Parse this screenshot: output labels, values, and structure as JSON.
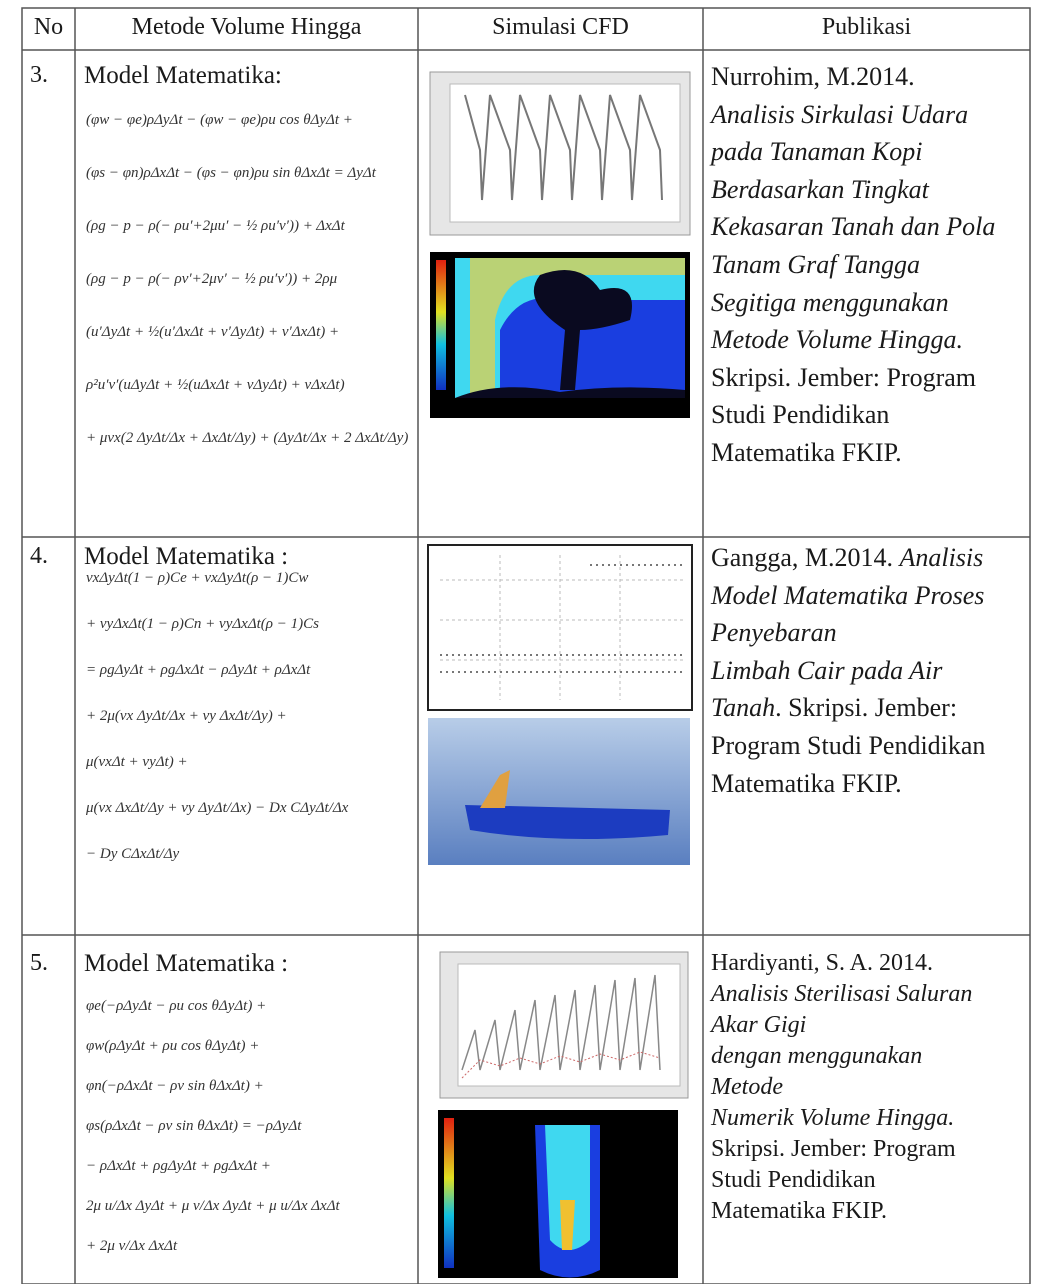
{
  "table": {
    "header": [
      "No",
      "Metode Volume Hingga",
      "Simulasi CFD",
      "Publikasi"
    ],
    "rows": [
      {
        "no": "3.",
        "heading": "Model Matematika:",
        "equations": [
          "(φw − φe)ρΔyΔt − (φw − φe)ρu cos θΔyΔt +",
          "(φs − φn)ρΔxΔt − (φs − φn)ρu sin θΔxΔt = ΔyΔt",
          "(ρg − p − ρ(− ρu′+2μu′ − ½ ρu′v′)) + ΔxΔt",
          "(ρg − p − ρ(− ρv′+2μv′ − ½ ρu′v′)) + 2ρμ",
          "(u′ΔyΔt + ½(u′ΔxΔt + v′ΔyΔt) + v′ΔxΔt) +",
          "ρ²u′v′(uΔyΔt + ½(uΔxΔt + vΔyΔt) + vΔxΔt)",
          "+ μvx(2 ΔyΔt/Δx + ΔxΔt/Δy) + (ΔyΔt/Δx + 2 ΔxΔt/Δy)"
        ],
        "publication": [
          [
            {
              "text": "Nurrohim, M.2014.",
              "style": "normal"
            }
          ],
          [
            {
              "text": "Analisis Sirkulasi Udara",
              "style": "italic"
            }
          ],
          [
            {
              "text": "pada Tanaman Kopi",
              "style": "italic"
            }
          ],
          [
            {
              "text": "Berdasarkan Tingkat",
              "style": "italic"
            }
          ],
          [
            {
              "text": "Kekasaran Tanah dan Pola",
              "style": "italic"
            }
          ],
          [
            {
              "text": "Tanam Graf Tangga",
              "style": "italic"
            }
          ],
          [
            {
              "text": "Segitiga menggunakan",
              "style": "italic"
            }
          ],
          [
            {
              "text": "Metode Volume Hingga.",
              "style": "italic"
            }
          ],
          [
            {
              "text": "Skripsi. Jember: Program",
              "style": "normal"
            }
          ],
          [
            {
              "text": "Studi Pendidikan",
              "style": "normal"
            }
          ],
          [
            {
              "text": "Matematika FKIP.",
              "style": "normal"
            }
          ]
        ]
      },
      {
        "no": "4.",
        "heading": "Model Matematika :",
        "equations": [
          "vxΔyΔt(1 − ρ)Ce + vxΔyΔt(ρ − 1)Cw",
          "+ vyΔxΔt(1 − ρ)Cn + vyΔxΔt(ρ − 1)Cs",
          "= ρgΔyΔt + ρgΔxΔt − ρΔyΔt + ρΔxΔt",
          "+ 2μ(vx ΔyΔt/Δx + vy ΔxΔt/Δy) +",
          "μ(vxΔt + vyΔt) +",
          "μ(vx ΔxΔt/Δy + vy ΔyΔt/Δx) − Dx CΔyΔt/Δx",
          "− Dy CΔxΔt/Δy"
        ],
        "publication": [
          [
            {
              "text": "Gangga, M.2014. ",
              "style": "normal"
            },
            {
              "text": "Analisis",
              "style": "italic"
            }
          ],
          [
            {
              "text": "Model Matematika Proses",
              "style": "italic"
            }
          ],
          [
            {
              "text": "Penyebaran",
              "style": "italic"
            }
          ],
          [
            {
              "text": "Limbah Cair pada Air",
              "style": "italic"
            }
          ],
          [
            {
              "text": "Tanah",
              "style": "italic"
            },
            {
              "text": ". Skripsi. Jember:",
              "style": "normal"
            }
          ],
          [
            {
              "text": "Program Studi Pendidikan",
              "style": "normal"
            }
          ],
          [
            {
              "text": "Matematika FKIP.",
              "style": "normal"
            }
          ]
        ]
      },
      {
        "no": "5.",
        "heading": "Model Matematika :",
        "equations": [
          "φe(−ρΔyΔt − ρu cos θΔyΔt) +",
          "φw(ρΔyΔt + ρu cos θΔyΔt) +",
          "φn(−ρΔxΔt − ρv sin θΔxΔt) +",
          "φs(ρΔxΔt − ρv sin θΔxΔt) = −ρΔyΔt",
          "− ρΔxΔt + ρgΔyΔt + ρgΔxΔt +",
          "2μ u/Δx ΔyΔt + μ v/Δx ΔyΔt + μ u/Δx ΔxΔt",
          "+ 2μ v/Δx ΔxΔt"
        ],
        "publication": [
          [
            {
              "text": "Hardiyanti, S. A. 2014.",
              "style": "normal"
            }
          ],
          [
            {
              "text": "Analisis Sterilisasi Saluran",
              "style": "italic"
            }
          ],
          [
            {
              "text": "Akar Gigi",
              "style": "italic"
            }
          ],
          [
            {
              "text": "dengan menggunakan",
              "style": "italic"
            }
          ],
          [
            {
              "text": "Metode",
              "style": "italic"
            }
          ],
          [
            {
              "text": "Numerik Volume Hingga.",
              "style": "italic"
            }
          ],
          [
            {
              "text": "Skripsi. Jember: Program",
              "style": "normal"
            }
          ],
          [
            {
              "text": "Studi Pendidikan",
              "style": "normal"
            }
          ],
          [
            {
              "text": "Matematika FKIP.",
              "style": "normal"
            }
          ]
        ]
      }
    ]
  }
}
